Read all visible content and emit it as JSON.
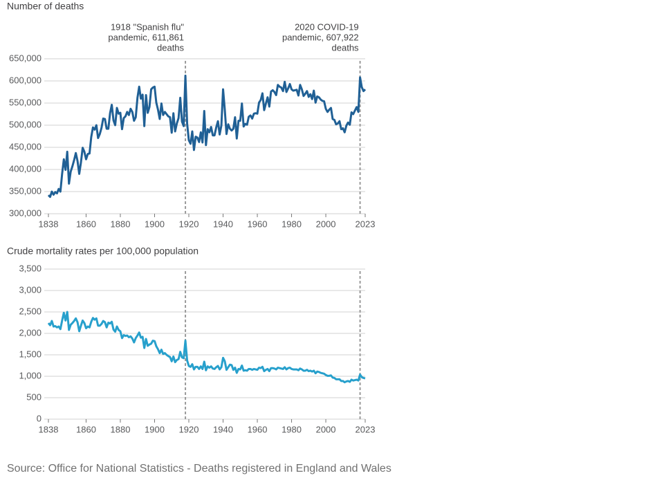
{
  "chart_data": [
    {
      "type": "line",
      "y_label": "Number of deaths",
      "color": "#206095",
      "grid": true,
      "xlim": [
        1838,
        2023
      ],
      "xticks": [
        1838,
        1860,
        1880,
        1900,
        1920,
        1940,
        1960,
        1980,
        2000,
        2023
      ],
      "ylim": [
        300000,
        650000
      ],
      "yticks": [
        {
          "value": 300000,
          "label": "300,000"
        },
        {
          "value": 350000,
          "label": "350,000"
        },
        {
          "value": 400000,
          "label": "400,000"
        },
        {
          "value": 450000,
          "label": "450,000"
        },
        {
          "value": 500000,
          "label": "500,000"
        },
        {
          "value": 550000,
          "label": "550,000"
        },
        {
          "value": 600000,
          "label": "600,000"
        },
        {
          "value": 650000,
          "label": "650,000"
        }
      ],
      "vlines": [
        1918,
        2020
      ],
      "annotations": [
        {
          "x": 1918,
          "lines": [
            "1918 \"Spanish flu\"",
            "pandemic, 611,861",
            "deaths"
          ]
        },
        {
          "x": 2020,
          "lines": [
            "2020 COVID-19",
            "pandemic, 607,922",
            "deaths"
          ]
        }
      ],
      "x": [
        1838,
        1839,
        1840,
        1841,
        1842,
        1843,
        1844,
        1845,
        1846,
        1847,
        1848,
        1849,
        1850,
        1851,
        1852,
        1853,
        1854,
        1855,
        1856,
        1857,
        1858,
        1859,
        1860,
        1861,
        1862,
        1863,
        1864,
        1865,
        1866,
        1867,
        1868,
        1869,
        1870,
        1871,
        1872,
        1873,
        1874,
        1875,
        1876,
        1877,
        1878,
        1879,
        1880,
        1881,
        1882,
        1883,
        1884,
        1885,
        1886,
        1887,
        1888,
        1889,
        1890,
        1891,
        1892,
        1893,
        1894,
        1895,
        1896,
        1897,
        1898,
        1899,
        1900,
        1901,
        1902,
        1903,
        1904,
        1905,
        1906,
        1907,
        1908,
        1909,
        1910,
        1911,
        1912,
        1913,
        1914,
        1915,
        1916,
        1917,
        1918,
        1919,
        1920,
        1921,
        1922,
        1923,
        1924,
        1925,
        1926,
        1927,
        1928,
        1929,
        1930,
        1931,
        1932,
        1933,
        1934,
        1935,
        1936,
        1937,
        1938,
        1939,
        1940,
        1941,
        1942,
        1943,
        1944,
        1945,
        1946,
        1947,
        1948,
        1949,
        1950,
        1951,
        1952,
        1953,
        1954,
        1955,
        1956,
        1957,
        1958,
        1959,
        1960,
        1961,
        1962,
        1963,
        1964,
        1965,
        1966,
        1967,
        1968,
        1969,
        1970,
        1971,
        1972,
        1973,
        1974,
        1975,
        1976,
        1977,
        1978,
        1979,
        1980,
        1981,
        1982,
        1983,
        1984,
        1985,
        1986,
        1987,
        1988,
        1989,
        1990,
        1991,
        1992,
        1993,
        1994,
        1995,
        1996,
        1997,
        1998,
        1999,
        2000,
        2001,
        2002,
        2003,
        2004,
        2005,
        2006,
        2007,
        2008,
        2009,
        2010,
        2011,
        2012,
        2013,
        2014,
        2015,
        2016,
        2017,
        2018,
        2019,
        2020,
        2021,
        2022,
        2023
      ],
      "values": [
        342000,
        338000,
        350000,
        343000,
        349000,
        346000,
        356000,
        350000,
        390000,
        423000,
        399000,
        440000,
        368000,
        395000,
        407000,
        421000,
        437000,
        419000,
        390000,
        416000,
        449000,
        440000,
        423000,
        435000,
        436000,
        473000,
        495000,
        490000,
        500000,
        471000,
        480000,
        494000,
        515000,
        514000,
        492000,
        492000,
        527000,
        546000,
        511000,
        500000,
        539000,
        526000,
        528000,
        491000,
        516000,
        520000,
        530000,
        523000,
        537000,
        530000,
        510000,
        518000,
        562000,
        587000,
        560000,
        569000,
        498000,
        568000,
        528000,
        541000,
        581000,
        585000,
        587000,
        551000,
        535000,
        514000,
        549000,
        523000,
        530000,
        525000,
        520000,
        518000,
        483000,
        527000,
        486000,
        504000,
        516000,
        562000,
        508000,
        498000,
        611861,
        504000,
        466000,
        458000,
        486000,
        444000,
        474000,
        472000,
        462000,
        484000,
        461000,
        532000,
        455000,
        491000,
        484000,
        496000,
        477000,
        477000,
        495000,
        509000,
        479000,
        499000,
        581000,
        535000,
        480000,
        502000,
        492000,
        488000,
        492000,
        518000,
        470000,
        510000,
        510000,
        549000,
        497000,
        503000,
        501000,
        519000,
        522000,
        515000,
        526000,
        527000,
        526000,
        551000,
        557000,
        572000,
        534000,
        549000,
        563000,
        542000,
        576000,
        579000,
        575000,
        568000,
        591000,
        587000,
        585000,
        577000,
        598000,
        575000,
        583000,
        593000,
        581000,
        578000,
        579000,
        580000,
        567000,
        591000,
        581000,
        566000,
        571000,
        577000,
        564000,
        570000,
        559000,
        578000,
        551000,
        565000,
        563000,
        558000,
        555000,
        554000,
        537000,
        530000,
        535000,
        539000,
        514000,
        512000,
        502000,
        504000,
        509000,
        491000,
        493000,
        484000,
        499000,
        506000,
        501000,
        529000,
        525000,
        533000,
        541000,
        530000,
        607922,
        586000,
        577000,
        581000
      ]
    },
    {
      "type": "line",
      "y_label": "Crude mortality rates per 100,000 population",
      "color": "#27a0cc",
      "grid": true,
      "xlim": [
        1838,
        2023
      ],
      "xticks": [
        1838,
        1860,
        1880,
        1900,
        1920,
        1940,
        1960,
        1980,
        2000,
        2023
      ],
      "ylim": [
        0,
        3500
      ],
      "yticks": [
        0,
        500,
        {
          "value": 1000,
          "label": "1,000"
        },
        {
          "value": 1500,
          "label": "1,500"
        },
        {
          "value": 2000,
          "label": "2,000"
        },
        {
          "value": 2500,
          "label": "2,500"
        },
        {
          "value": 3000,
          "label": "3,000"
        },
        {
          "value": 3500,
          "label": "3,500"
        }
      ],
      "vlines": [
        1918,
        2020
      ],
      "x": [
        1838,
        1839,
        1840,
        1841,
        1842,
        1843,
        1844,
        1845,
        1846,
        1847,
        1848,
        1849,
        1850,
        1851,
        1852,
        1853,
        1854,
        1855,
        1856,
        1857,
        1858,
        1859,
        1860,
        1861,
        1862,
        1863,
        1864,
        1865,
        1866,
        1867,
        1868,
        1869,
        1870,
        1871,
        1872,
        1873,
        1874,
        1875,
        1876,
        1877,
        1878,
        1879,
        1880,
        1881,
        1882,
        1883,
        1884,
        1885,
        1886,
        1887,
        1888,
        1889,
        1890,
        1891,
        1892,
        1893,
        1894,
        1895,
        1896,
        1897,
        1898,
        1899,
        1900,
        1901,
        1902,
        1903,
        1904,
        1905,
        1906,
        1907,
        1908,
        1909,
        1910,
        1911,
        1912,
        1913,
        1914,
        1915,
        1916,
        1917,
        1918,
        1919,
        1920,
        1921,
        1922,
        1923,
        1924,
        1925,
        1926,
        1927,
        1928,
        1929,
        1930,
        1931,
        1932,
        1933,
        1934,
        1935,
        1936,
        1937,
        1938,
        1939,
        1940,
        1941,
        1942,
        1943,
        1944,
        1945,
        1946,
        1947,
        1948,
        1949,
        1950,
        1951,
        1952,
        1953,
        1954,
        1955,
        1956,
        1957,
        1958,
        1959,
        1960,
        1961,
        1962,
        1963,
        1964,
        1965,
        1966,
        1967,
        1968,
        1969,
        1970,
        1971,
        1972,
        1973,
        1974,
        1975,
        1976,
        1977,
        1978,
        1979,
        1980,
        1981,
        1982,
        1983,
        1984,
        1985,
        1986,
        1987,
        1988,
        1989,
        1990,
        1991,
        1992,
        1993,
        1994,
        1995,
        1996,
        1997,
        1998,
        1999,
        2000,
        2001,
        2002,
        2003,
        2004,
        2005,
        2006,
        2007,
        2008,
        2009,
        2010,
        2011,
        2012,
        2013,
        2014,
        2015,
        2016,
        2017,
        2018,
        2019,
        2020,
        2021,
        2022,
        2023
      ],
      "values": [
        2240,
        2190,
        2290,
        2160,
        2170,
        2140,
        2160,
        2100,
        2300,
        2480,
        2300,
        2500,
        2080,
        2200,
        2240,
        2290,
        2350,
        2260,
        2050,
        2180,
        2300,
        2240,
        2120,
        2160,
        2140,
        2270,
        2360,
        2320,
        2350,
        2180,
        2180,
        2220,
        2290,
        2260,
        2140,
        2250,
        2230,
        2270,
        2090,
        2040,
        2160,
        2080,
        2050,
        1890,
        1960,
        1940,
        1950,
        1910,
        1930,
        1880,
        1790,
        1890,
        1950,
        2020,
        1900,
        1920,
        1660,
        1870,
        1710,
        1740,
        1760,
        1830,
        1820,
        1700,
        1630,
        1540,
        1620,
        1520,
        1540,
        1500,
        1470,
        1450,
        1350,
        1460,
        1330,
        1380,
        1400,
        1570,
        1440,
        1420,
        1830,
        1370,
        1240,
        1220,
        1280,
        1160,
        1220,
        1220,
        1170,
        1230,
        1170,
        1340,
        1140,
        1230,
        1200,
        1230,
        1180,
        1170,
        1210,
        1240,
        1160,
        1210,
        1430,
        1350,
        1150,
        1210,
        1270,
        1260,
        1150,
        1200,
        1080,
        1170,
        1160,
        1250,
        1130,
        1140,
        1130,
        1170,
        1170,
        1150,
        1170,
        1160,
        1150,
        1200,
        1190,
        1220,
        1120,
        1150,
        1170,
        1120,
        1190,
        1190,
        1180,
        1160,
        1200,
        1190,
        1180,
        1170,
        1210,
        1160,
        1190,
        1200,
        1170,
        1160,
        1160,
        1160,
        1140,
        1180,
        1160,
        1130,
        1130,
        1150,
        1120,
        1130,
        1110,
        1130,
        1070,
        1110,
        1100,
        1080,
        1070,
        1060,
        1030,
        1010,
        1010,
        1020,
        970,
        960,
        930,
        930,
        930,
        890,
        890,
        860,
        880,
        890,
        870,
        920,
        900,
        910,
        920,
        900,
        1040,
        980,
        960,
        950
      ]
    }
  ],
  "source": "Source: Office for National Statistics - Deaths registered in England and Wales"
}
